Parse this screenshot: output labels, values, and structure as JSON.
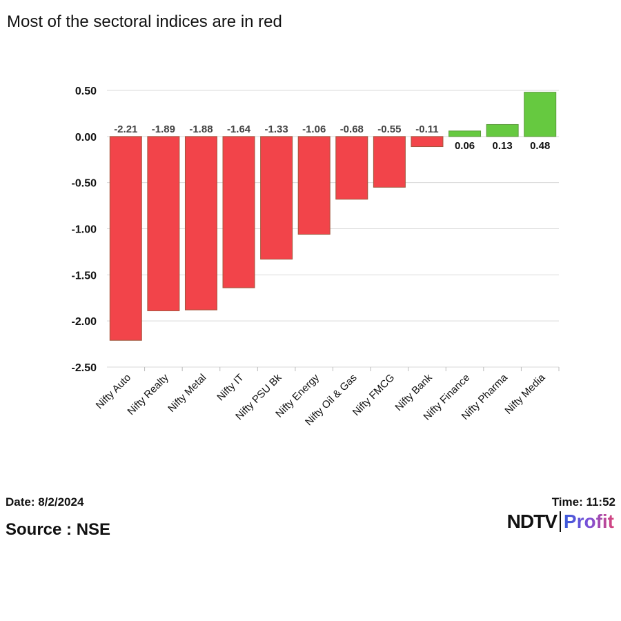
{
  "title": "Most of the sectoral indices are in red",
  "date": "Date: 8/2/2024",
  "time": "Time: 11:52",
  "source": "Source : NSE",
  "logo": {
    "left": "NDTV",
    "right": "Profit"
  },
  "colors": {
    "negative": "#f2444a",
    "positive": "#66c940",
    "grid": "#d9d9d9"
  },
  "chart_data": {
    "type": "bar",
    "title": "Most of the sectoral indices are in red",
    "categories": [
      "Nifty Auto",
      "Nifty Realty",
      "Nifty Metal",
      "Nifty IT",
      "Nifty PSU Bk",
      "Nifty Energy",
      "Nifty Oil & Gas",
      "Nifty FMCG",
      "Nifty Bank",
      "Nifty Finance",
      "Nifty Pharma",
      "Nifty Media"
    ],
    "values": [
      -2.21,
      -1.89,
      -1.88,
      -1.64,
      -1.33,
      -1.06,
      -0.68,
      -0.55,
      -0.11,
      0.06,
      0.13,
      0.48
    ],
    "value_labels": [
      "-2.21",
      "-1.89",
      "-1.88",
      "-1.64",
      "-1.33",
      "-1.06",
      "-0.68",
      "-0.55",
      "-0.11",
      "0.06",
      "0.13",
      "0.48"
    ],
    "yticks": [
      0.5,
      0,
      -0.5,
      -1,
      -1.5,
      -2,
      -2.5
    ],
    "ytick_labels": [
      "0.50",
      "0.00",
      "-0.50",
      "-1.00",
      "-1.50",
      "-2.00",
      "-2.50"
    ],
    "ylim": [
      -2.5,
      0.5
    ],
    "grid": true,
    "xlabel": "",
    "ylabel": ""
  }
}
